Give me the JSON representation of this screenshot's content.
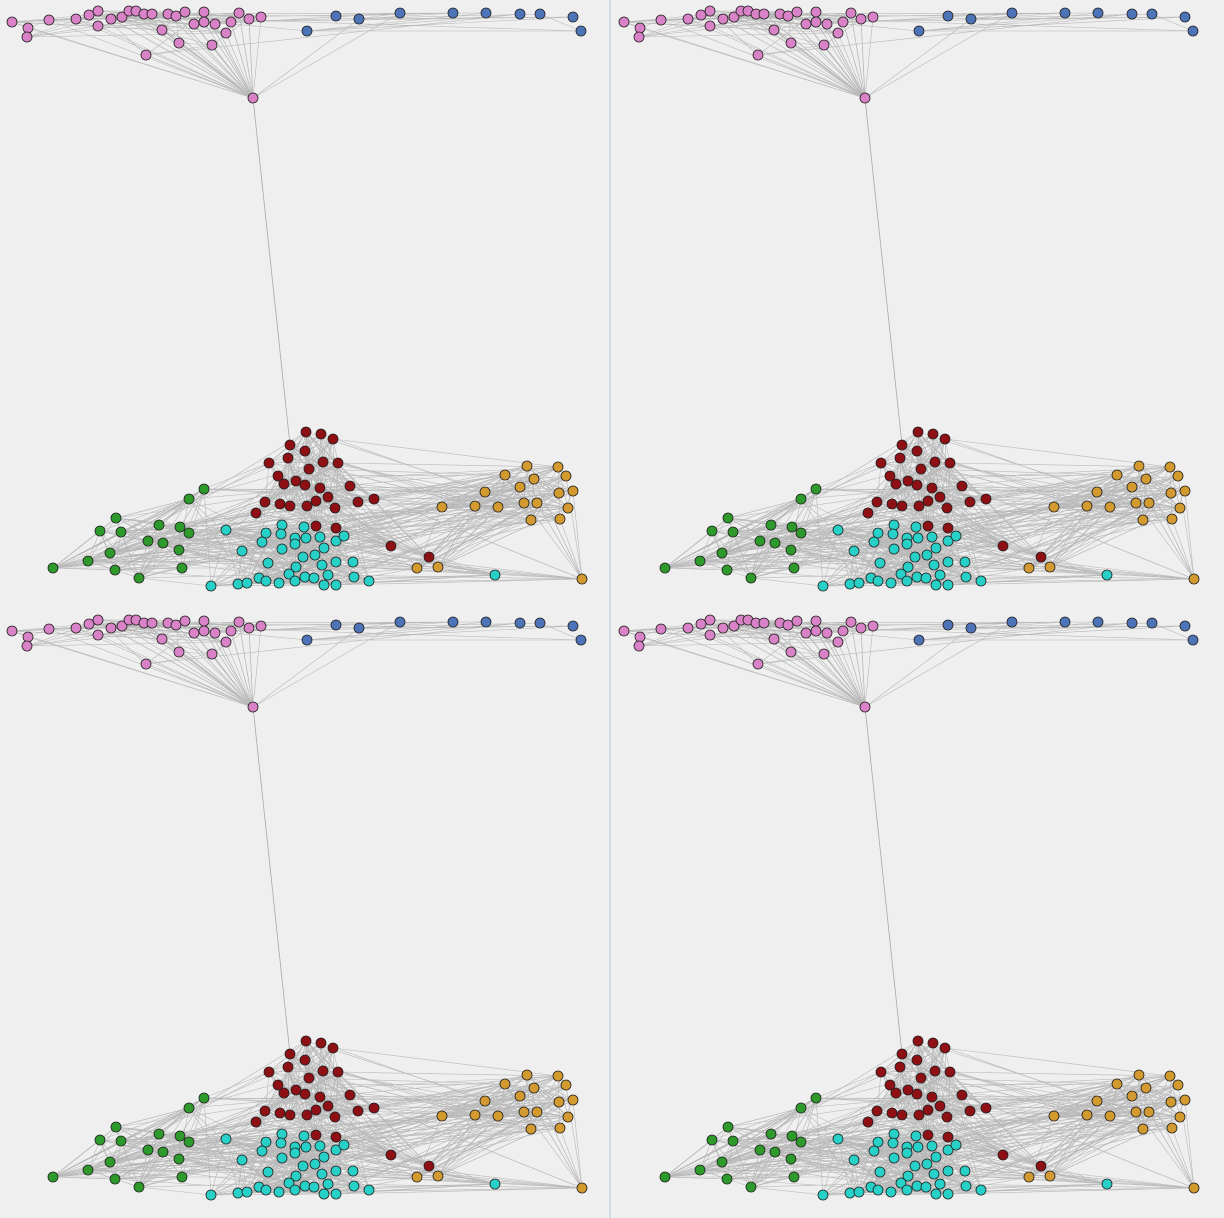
{
  "view": {
    "panels": [
      "panel-top-left",
      "panel-top-right",
      "panel-bottom-left",
      "panel-bottom-right"
    ]
  },
  "graph": {
    "clusters": [
      {
        "id": "pink",
        "color": "#d982c8"
      },
      {
        "id": "blue",
        "color": "#4d74b8"
      },
      {
        "id": "red",
        "color": "#8e1014"
      },
      {
        "id": "cyan",
        "color": "#27d1c8"
      },
      {
        "id": "green",
        "color": "#2e9a2c"
      },
      {
        "id": "orange",
        "color": "#d39a30"
      }
    ],
    "colors": {
      "background": "#efefef",
      "edge": "#b8b8b8",
      "node_outline": "#222222",
      "divider": "#c9d6e6"
    }
  }
}
